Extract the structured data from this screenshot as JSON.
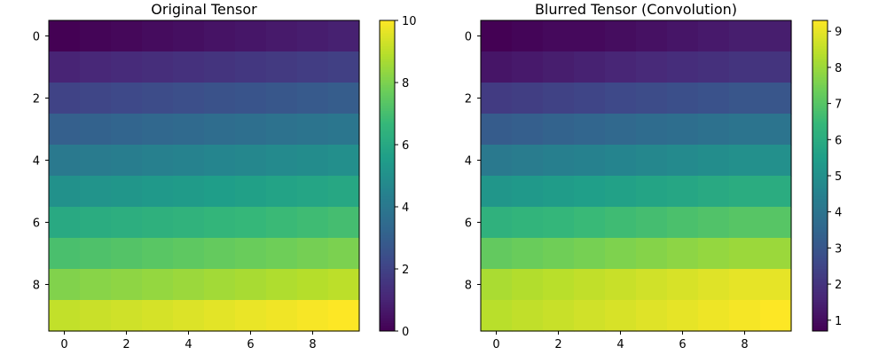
{
  "chart_data": [
    {
      "type": "heatmap",
      "title": "Original Tensor",
      "colormap": "viridis",
      "x": [
        0,
        1,
        2,
        3,
        4,
        5,
        6,
        7,
        8,
        9
      ],
      "y": [
        0,
        1,
        2,
        3,
        4,
        5,
        6,
        7,
        8,
        9
      ],
      "x_ticks": [
        "0",
        "2",
        "4",
        "6",
        "8"
      ],
      "y_ticks": [
        "0",
        "2",
        "4",
        "6",
        "8"
      ],
      "colorbar_range": [
        0,
        10
      ],
      "colorbar_ticks": [
        "0",
        "2",
        "4",
        "6",
        "8",
        "10"
      ],
      "z": [
        [
          0.0,
          0.1,
          0.2,
          0.3,
          0.4,
          0.51,
          0.61,
          0.71,
          0.81,
          0.91
        ],
        [
          1.01,
          1.11,
          1.21,
          1.31,
          1.41,
          1.52,
          1.62,
          1.72,
          1.82,
          1.92
        ],
        [
          2.02,
          2.12,
          2.22,
          2.32,
          2.42,
          2.53,
          2.63,
          2.73,
          2.83,
          2.93
        ],
        [
          3.03,
          3.13,
          3.23,
          3.33,
          3.43,
          3.54,
          3.64,
          3.74,
          3.84,
          3.94
        ],
        [
          4.04,
          4.14,
          4.24,
          4.34,
          4.44,
          4.55,
          4.65,
          4.75,
          4.85,
          4.95
        ],
        [
          5.05,
          5.15,
          5.25,
          5.35,
          5.45,
          5.56,
          5.66,
          5.76,
          5.86,
          5.96
        ],
        [
          6.06,
          6.16,
          6.26,
          6.36,
          6.46,
          6.57,
          6.67,
          6.77,
          6.87,
          6.97
        ],
        [
          7.07,
          7.17,
          7.27,
          7.37,
          7.47,
          7.58,
          7.68,
          7.78,
          7.88,
          7.98
        ],
        [
          8.08,
          8.18,
          8.28,
          8.38,
          8.48,
          8.59,
          8.69,
          8.79,
          8.89,
          8.99
        ],
        [
          9.09,
          9.19,
          9.29,
          9.39,
          9.49,
          9.6,
          9.7,
          9.8,
          9.9,
          10.0
        ]
      ]
    },
    {
      "type": "heatmap",
      "title": "Blurred Tensor (Convolution)",
      "colormap": "viridis",
      "x": [
        0,
        1,
        2,
        3,
        4,
        5,
        6,
        7,
        8,
        9
      ],
      "y": [
        0,
        1,
        2,
        3,
        4,
        5,
        6,
        7,
        8,
        9
      ],
      "x_ticks": [
        "0",
        "2",
        "4",
        "6",
        "8"
      ],
      "y_ticks": [
        "0",
        "2",
        "4",
        "6",
        "8"
      ],
      "colorbar_range": [
        0.7,
        9.3
      ],
      "colorbar_ticks": [
        "1",
        "2",
        "3",
        "4",
        "5",
        "6",
        "7",
        "8",
        "9"
      ],
      "z": [
        [
          0.7,
          0.8,
          0.9,
          0.9,
          1.0,
          1.1,
          1.2,
          1.3,
          1.4,
          1.4
        ],
        [
          1.2,
          1.3,
          1.4,
          1.5,
          1.6,
          1.7,
          1.8,
          1.9,
          2.0,
          2.0
        ],
        [
          2.2,
          2.3,
          2.4,
          2.5,
          2.6,
          2.7,
          2.8,
          2.9,
          3.0,
          3.0
        ],
        [
          3.2,
          3.3,
          3.4,
          3.5,
          3.6,
          3.7,
          3.8,
          3.9,
          4.0,
          4.0
        ],
        [
          4.2,
          4.3,
          4.4,
          4.5,
          4.6,
          4.7,
          4.8,
          4.9,
          5.0,
          5.0
        ],
        [
          5.2,
          5.3,
          5.4,
          5.5,
          5.6,
          5.7,
          5.8,
          5.9,
          6.0,
          6.0
        ],
        [
          6.2,
          6.3,
          6.4,
          6.5,
          6.6,
          6.7,
          6.8,
          6.9,
          7.0,
          7.0
        ],
        [
          7.2,
          7.3,
          7.4,
          7.5,
          7.6,
          7.7,
          7.8,
          7.9,
          8.0,
          8.0
        ],
        [
          8.2,
          8.3,
          8.4,
          8.5,
          8.6,
          8.7,
          8.8,
          8.9,
          9.0,
          9.0
        ],
        [
          8.4,
          8.5,
          8.6,
          8.7,
          8.8,
          8.9,
          9.0,
          9.1,
          9.2,
          9.3
        ]
      ]
    }
  ]
}
